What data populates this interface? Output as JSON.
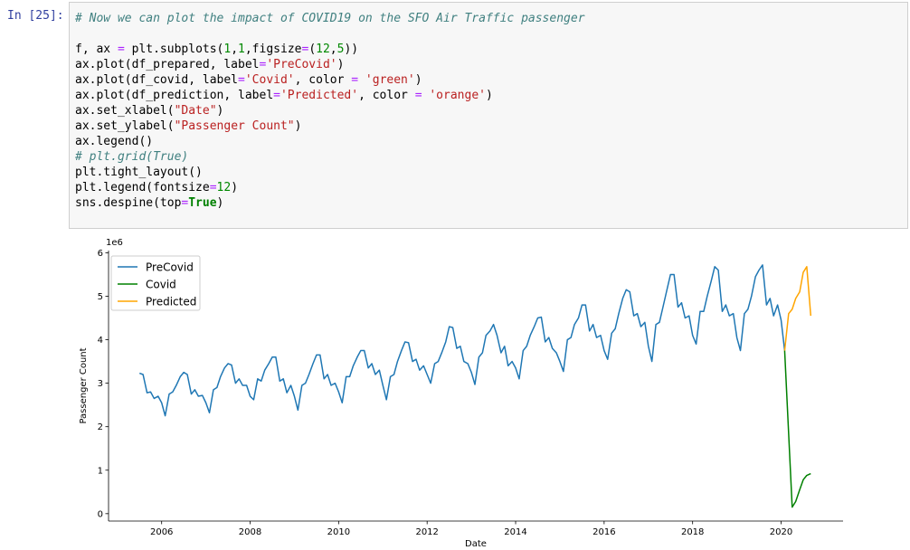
{
  "prompt": "In [25]:",
  "code": {
    "lines": [
      "# Now we can plot the impact of COVID19 on the SFO Air Traffic passenger",
      "",
      "f, ax = plt.subplots(1,1,figsize=(12,5))",
      "ax.plot(df_prepared, label='PreCovid')",
      "ax.plot(df_covid, label='Covid', color = 'green')",
      "ax.plot(df_prediction, label='Predicted', color = 'orange')",
      "ax.set_xlabel(\"Date\")",
      "ax.set_ylabel(\"Passenger Count\")",
      "ax.legend()",
      "# plt.grid(True)",
      "plt.tight_layout()",
      "plt.legend(fontsize=12)",
      "sns.despine(top=True)"
    ]
  },
  "chart_data": {
    "type": "line",
    "x_label": "Date",
    "y_label": "Passenger Count",
    "y_offset_label": "1e6",
    "grid": false,
    "legend_position": "upper left",
    "xlim": [
      2004.8,
      2021.4
    ],
    "xticks": [
      2006,
      2008,
      2010,
      2012,
      2014,
      2016,
      2018,
      2020
    ],
    "ylim": [
      -0.17,
      6.05
    ],
    "yticks": [
      0,
      1,
      2,
      3,
      4,
      5,
      6
    ],
    "series": [
      {
        "name": "PreCovid",
        "color": "#1f77b4",
        "x": [
          2005.5,
          2005.58,
          2005.67,
          2005.75,
          2005.83,
          2005.92,
          2006,
          2006.08,
          2006.17,
          2006.25,
          2006.33,
          2006.42,
          2006.5,
          2006.58,
          2006.67,
          2006.75,
          2006.83,
          2006.92,
          2007,
          2007.08,
          2007.17,
          2007.25,
          2007.33,
          2007.42,
          2007.5,
          2007.58,
          2007.67,
          2007.75,
          2007.83,
          2007.92,
          2008,
          2008.08,
          2008.17,
          2008.25,
          2008.33,
          2008.42,
          2008.5,
          2008.58,
          2008.67,
          2008.75,
          2008.83,
          2008.92,
          2009,
          2009.08,
          2009.17,
          2009.25,
          2009.33,
          2009.42,
          2009.5,
          2009.58,
          2009.67,
          2009.75,
          2009.83,
          2009.92,
          2010,
          2010.08,
          2010.17,
          2010.25,
          2010.33,
          2010.42,
          2010.5,
          2010.58,
          2010.67,
          2010.75,
          2010.83,
          2010.92,
          2011,
          2011.08,
          2011.17,
          2011.25,
          2011.33,
          2011.42,
          2011.5,
          2011.58,
          2011.67,
          2011.75,
          2011.83,
          2011.92,
          2012,
          2012.08,
          2012.17,
          2012.25,
          2012.33,
          2012.42,
          2012.5,
          2012.58,
          2012.67,
          2012.75,
          2012.83,
          2012.92,
          2013,
          2013.08,
          2013.17,
          2013.25,
          2013.33,
          2013.42,
          2013.5,
          2013.58,
          2013.67,
          2013.75,
          2013.83,
          2013.92,
          2014,
          2014.08,
          2014.17,
          2014.25,
          2014.33,
          2014.42,
          2014.5,
          2014.58,
          2014.67,
          2014.75,
          2014.83,
          2014.92,
          2015,
          2015.08,
          2015.17,
          2015.25,
          2015.33,
          2015.42,
          2015.5,
          2015.58,
          2015.67,
          2015.75,
          2015.83,
          2015.92,
          2016,
          2016.08,
          2016.17,
          2016.25,
          2016.33,
          2016.42,
          2016.5,
          2016.58,
          2016.67,
          2016.75,
          2016.83,
          2016.92,
          2017,
          2017.08,
          2017.17,
          2017.25,
          2017.33,
          2017.42,
          2017.5,
          2017.58,
          2017.67,
          2017.75,
          2017.83,
          2017.92,
          2018,
          2018.08,
          2018.17,
          2018.25,
          2018.33,
          2018.42,
          2018.5,
          2018.58,
          2018.67,
          2018.75,
          2018.83,
          2018.92,
          2019,
          2019.08,
          2019.17,
          2019.25,
          2019.33,
          2019.42,
          2019.5,
          2019.58,
          2019.67,
          2019.75,
          2019.83,
          2019.92,
          2020,
          2020.08
        ],
        "values": [
          3.23,
          3.2,
          2.78,
          2.8,
          2.65,
          2.7,
          2.55,
          2.25,
          2.75,
          2.8,
          2.95,
          3.15,
          3.25,
          3.2,
          2.75,
          2.85,
          2.7,
          2.72,
          2.55,
          2.32,
          2.85,
          2.9,
          3.15,
          3.35,
          3.45,
          3.42,
          3.0,
          3.1,
          2.95,
          2.95,
          2.7,
          2.62,
          3.1,
          3.05,
          3.3,
          3.45,
          3.6,
          3.6,
          3.05,
          3.1,
          2.78,
          2.95,
          2.7,
          2.38,
          2.95,
          3.0,
          3.2,
          3.45,
          3.65,
          3.65,
          3.1,
          3.2,
          2.95,
          3.0,
          2.8,
          2.55,
          3.15,
          3.15,
          3.4,
          3.6,
          3.75,
          3.75,
          3.35,
          3.45,
          3.2,
          3.3,
          2.95,
          2.62,
          3.15,
          3.2,
          3.5,
          3.75,
          3.95,
          3.93,
          3.5,
          3.55,
          3.3,
          3.4,
          3.2,
          3.0,
          3.45,
          3.5,
          3.7,
          3.95,
          4.3,
          4.28,
          3.8,
          3.85,
          3.5,
          3.45,
          3.25,
          2.97,
          3.6,
          3.7,
          4.1,
          4.2,
          4.35,
          4.1,
          3.7,
          3.85,
          3.4,
          3.5,
          3.35,
          3.1,
          3.75,
          3.85,
          4.1,
          4.3,
          4.5,
          4.52,
          3.95,
          4.05,
          3.8,
          3.7,
          3.5,
          3.27,
          4.0,
          4.05,
          4.35,
          4.5,
          4.8,
          4.8,
          4.2,
          4.35,
          4.05,
          4.1,
          3.75,
          3.55,
          4.15,
          4.25,
          4.6,
          4.95,
          5.15,
          5.1,
          4.55,
          4.6,
          4.3,
          4.4,
          3.85,
          3.5,
          4.35,
          4.4,
          4.75,
          5.15,
          5.5,
          5.5,
          4.75,
          4.85,
          4.5,
          4.55,
          4.1,
          3.9,
          4.65,
          4.65,
          5.0,
          5.35,
          5.68,
          5.6,
          4.65,
          4.8,
          4.55,
          4.6,
          4.05,
          3.75,
          4.6,
          4.7,
          5.0,
          5.45,
          5.6,
          5.72,
          4.8,
          4.95,
          4.55,
          4.8,
          4.45,
          3.75
        ]
      },
      {
        "name": "Covid",
        "color": "green",
        "x": [
          2020.08,
          2020.25,
          2020.33,
          2020.42,
          2020.5,
          2020.58,
          2020.67
        ],
        "values": [
          3.75,
          0.15,
          0.28,
          0.55,
          0.78,
          0.88,
          0.92
        ]
      },
      {
        "name": "Predicted",
        "color": "orange",
        "x": [
          2020.08,
          2020.17,
          2020.25,
          2020.33,
          2020.42,
          2020.5,
          2020.58,
          2020.67
        ],
        "values": [
          3.75,
          4.6,
          4.7,
          4.95,
          5.1,
          5.55,
          5.68,
          4.55
        ]
      }
    ]
  }
}
